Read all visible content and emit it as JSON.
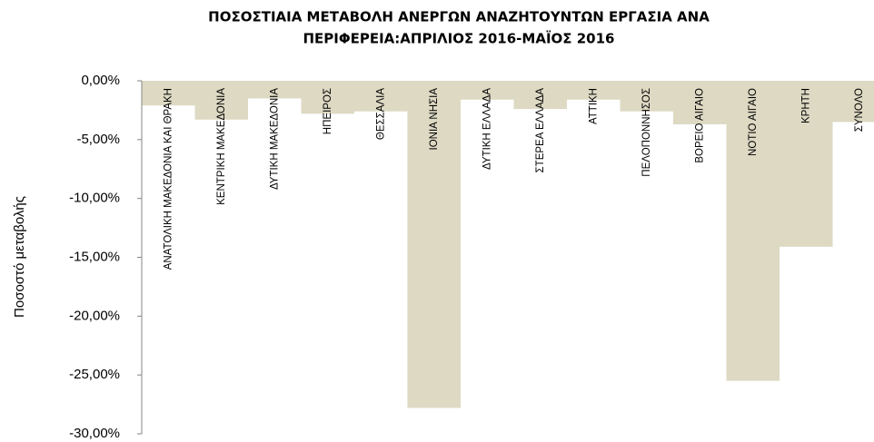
{
  "chart_data": {
    "type": "bar",
    "title": [
      "ΠΟΣΟΣΤΙΑΙΑ ΜΕΤΑΒΟΛΗ ΑΝΕΡΓΩΝ ΑΝΑΖΗΤΟΥΝΤΩΝ ΕΡΓΑΣΙΑ ΑΝΑ",
      "ΠΕΡΙΦΕΡΕΙΑ:ΑΠΡΙΛΙΟΣ 2016-ΜΑΪΟΣ 2016"
    ],
    "y_label": "Ποσοστό μεταβολής",
    "categories": [
      "ΑΝΑΤΟΛΙΚΗ ΜΑΚΕΔΟΝΙΑ ΚΑΙ ΘΡΑΚΗ",
      "ΚΕΝΤΡΙΚΗ ΜΑΚΕΔΟΝΙΑ",
      "ΔΥΤΙΚΗ ΜΑΚΕΔΟΝΙΑ",
      "ΗΠΕΙΡΟΣ",
      "ΘΕΣΣΑΛΙΑ",
      "ΙΟΝΙΑ ΝΗΣΙΑ",
      "ΔΥΤΙΚΗ ΕΛΛΑΔΑ",
      "ΣΤΕΡΕΑ ΕΛΛΑΔΑ",
      "ΑΤΤΙΚΗ",
      "ΠΕΛΟΠΟΝΝΗΣΟΣ",
      "ΒΟΡΕΙΟ ΑΙΓΑΙΟ",
      "ΝΟΤΙΟ ΑΙΓΑΙΟ",
      "ΚΡΗΤΗ",
      "ΣΥΝΟΛΟ"
    ],
    "values": [
      -2.1,
      -3.3,
      -1.5,
      -2.8,
      -2.6,
      -27.8,
      -1.6,
      -2.4,
      -1.6,
      -2.6,
      -3.7,
      -25.5,
      -14.1,
      -3.5
    ],
    "color": "#ddd9c3",
    "ylim": [
      -30,
      0
    ],
    "yticks": [
      {
        "value": 0,
        "label": "0,00%"
      },
      {
        "value": -5,
        "label": "-5,00%"
      },
      {
        "value": -10,
        "label": "-10,00%"
      },
      {
        "value": -15,
        "label": "-15,00%"
      },
      {
        "value": -20,
        "label": "-20,00%"
      },
      {
        "value": -25,
        "label": "-25,00%"
      },
      {
        "value": -30,
        "label": "-30,00%"
      }
    ],
    "grid": false
  }
}
